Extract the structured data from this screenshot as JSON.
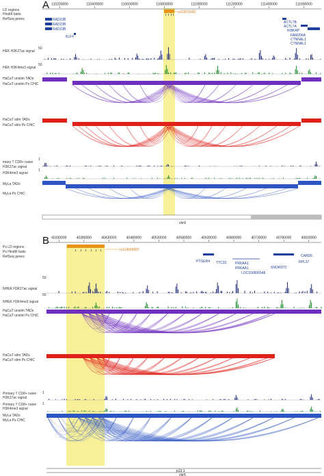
{
  "colors": {
    "highlight": "#f7ee8e",
    "snp": "#e8941a",
    "unstim": "#6f2fbf",
    "stim": "#e0221b",
    "myla": "#2d56c4",
    "h3k27ac": "#1f2a7a",
    "h3k4me3": "#1a8a2a",
    "gray": "#8c8c8c",
    "gene": "#1f3f9f"
  },
  "panelA": {
    "letter": "A",
    "ticks": [
      "110200000",
      "110400000",
      "110600000",
      "110800000",
      "111000000",
      "111200000",
      "111400000",
      "111600000"
    ],
    "snp": "rs10979182",
    "chrom_label": "chr9",
    "tracks": {
      "ld": "LD regions",
      "baits": "HindIII baits",
      "refseq": "RefSeq genes",
      "h3k27ac": "HEK H3K27ac signal",
      "h3k4me3": "HEK H3K4me3 signal",
      "unstim_tads": "HaCaT unstim TADs",
      "unstim_chic": "HaCaT unstim Ps CHiC",
      "stim_tads": "HaCaT stim TADs",
      "stim_chic": "HaCaT stim Ps CHiC",
      "tcell_k27": "imary T CD8+ naive",
      "tcell_k27b": "H3K27ac signal",
      "tcell_k4": "H3K4me3 signal",
      "myla_tads": "MyLa TADs",
      "myla_chic": "MyLa Ps CHiC"
    },
    "genes": {
      "g1": "RAD23B",
      "g2": "RAD23B",
      "g3": "RAD23B",
      "klf4": "KLF4",
      "actl7b": "ACTL7B",
      "actl7a": "ACTL7A",
      "ikbkap": "IKBKAP",
      "fam206a": "FAM206A",
      "ctnnal1a": "CTNNAL1",
      "ctnnal1b": "CTNNAL1"
    },
    "scale_a": "50",
    "scale_b": "50",
    "scale_c": "1",
    "scale_d": "1"
  },
  "panelB": {
    "letter": "B",
    "ticks": [
      "40330000",
      "40380000",
      "40430000",
      "40480000",
      "40530000",
      "40580000",
      "40630000",
      "40680000",
      "40730000",
      "40780000",
      "40830000"
    ],
    "snp": "rs114934997",
    "chrom_label": "chr5",
    "band_label": "p13.1",
    "tracks": {
      "ld": "Ps LD regions",
      "baits": "Ps HindIII baits",
      "refseq": "RefSeq genes",
      "h3k27ac": "NHEK H3K27ac signal",
      "h3k4me3": "NHEK H3K4me3 signal",
      "unstim_tads": "HaCaT unstim TADs",
      "unstim_chic": "HaCaT unstim Ps CHiC",
      "stim_tads": "HaCaT stim TADs",
      "stim_chic": "HaCaT stim Ps CHiC",
      "tcell_k27a": "Primary T CD8+ naive",
      "tcell_k27b": "H3K27ac signal",
      "tcell_k4a": "Primary T CD8+ naive",
      "tcell_k4b": "H3K4me3 signal",
      "myla_tads": "MyLa TADs",
      "myla_chic": "MyLa Ps CHiC"
    },
    "genes": {
      "ptger4": "PTGER4",
      "ttc33": "TTC33",
      "prkaa1a": "PRKAA1",
      "prkaa1b": "PRKAA1",
      "loc": "LOC100506548",
      "card6": "CARD6",
      "rpl37": "RPL37",
      "snord72": "SNORD72"
    },
    "scale_a": "50",
    "scale_b": "50",
    "scale_c": "1",
    "scale_d": "1"
  }
}
